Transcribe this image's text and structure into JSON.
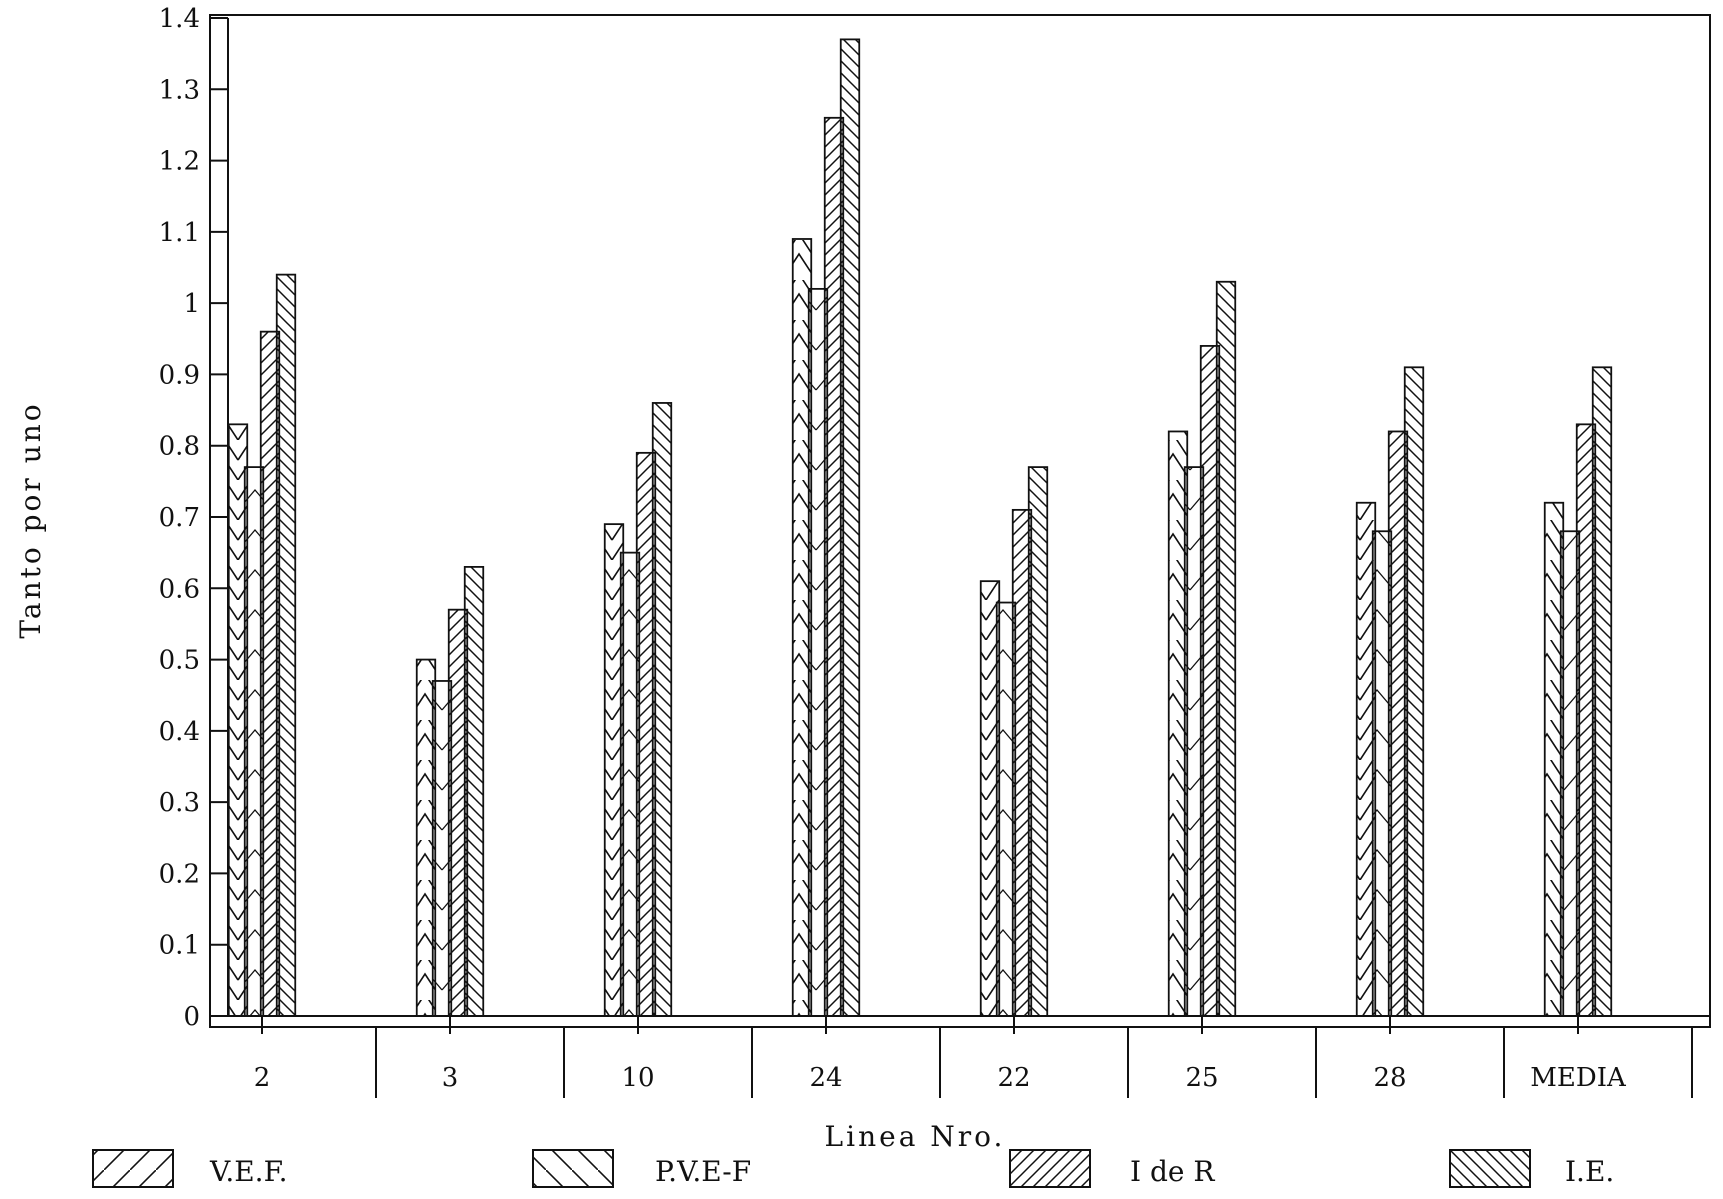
{
  "chart_data": {
    "type": "bar",
    "title": "",
    "xlabel": "Linea Nro.",
    "ylabel": "Tanto por uno",
    "ylim": [
      0,
      1.4
    ],
    "yticks": [
      "0",
      "0.1",
      "0.2",
      "0.3",
      "0.4",
      "0.5",
      "0.6",
      "0.7",
      "0.8",
      "0.9",
      "1",
      "1.1",
      "1.2",
      "1.3",
      "1.4"
    ],
    "categories": [
      "2",
      "3",
      "10",
      "24",
      "22",
      "25",
      "28",
      "MEDIA"
    ],
    "series": [
      {
        "name": "V.E.F.",
        "pattern": "chevron",
        "values": [
          0.83,
          0.5,
          0.69,
          1.09,
          0.61,
          0.82,
          0.72,
          0.72
        ]
      },
      {
        "name": "P.V.E-F",
        "pattern": "chevron-light",
        "values": [
          0.77,
          0.47,
          0.65,
          1.02,
          0.58,
          0.77,
          0.68,
          0.68
        ]
      },
      {
        "name": "I de R",
        "pattern": "diagonal-forward",
        "values": [
          0.96,
          0.57,
          0.79,
          1.26,
          0.71,
          0.94,
          0.82,
          0.83
        ]
      },
      {
        "name": "I.E.",
        "pattern": "diagonal-backward",
        "values": [
          1.04,
          0.63,
          0.86,
          1.37,
          0.77,
          1.03,
          0.91,
          0.91
        ]
      }
    ],
    "grid": false,
    "legend_position": "bottom"
  }
}
